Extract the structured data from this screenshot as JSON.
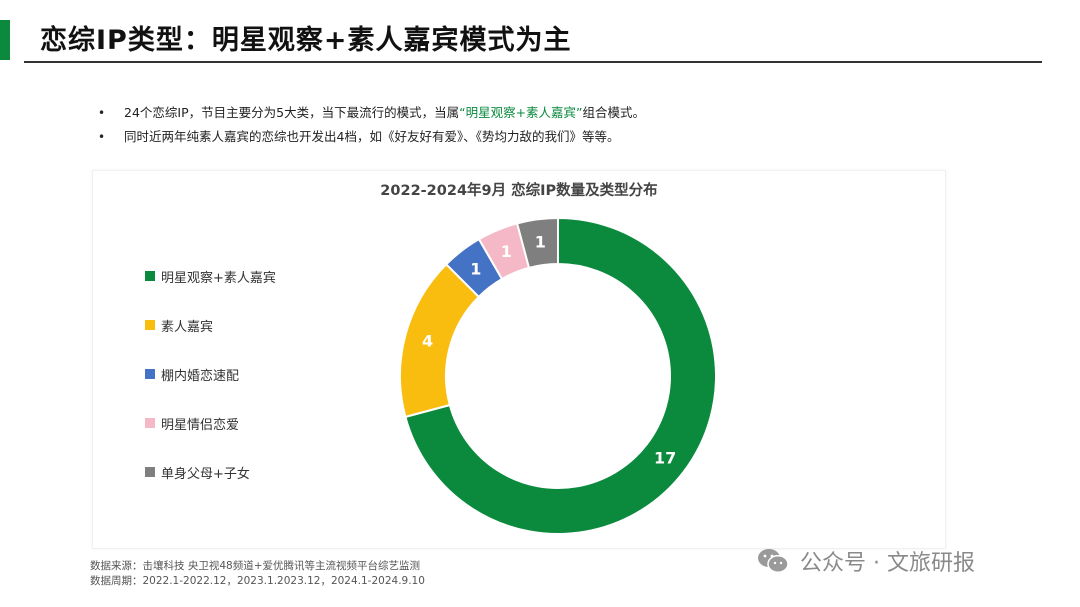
{
  "header": {
    "title": "恋综IP类型：明星观察+素人嘉宾模式为主"
  },
  "bullets": [
    {
      "pre": "24个恋综IP，节目主要分为5大类，当下最流行的模式，当属",
      "highlight": "“明星观察+素人嘉宾”",
      "post": "组合模式。"
    },
    {
      "text": "同时近两年纯素人嘉宾的恋综也开发出4档，如《好友好有爱》、《势均力敌的我们》等等。"
    }
  ],
  "bullet_symbol": "•",
  "chart_data": {
    "type": "donut",
    "title": "2022-2024年9月 恋综IP数量及类型分布",
    "categories": [
      "明星观察+素人嘉宾",
      "素人嘉宾",
      "棚内婚恋速配",
      "明星情侣恋爱",
      "单身父母+子女"
    ],
    "values": [
      17,
      4,
      1,
      1,
      1
    ],
    "labels": [
      "17",
      "4",
      "1",
      "1",
      "1"
    ],
    "colors": [
      "#0b8a3e",
      "#f8bd0f",
      "#4472c4",
      "#f4b8c6",
      "#7f7f7f"
    ],
    "total": 24,
    "start_angle_deg": 0,
    "direction": "clockwise",
    "legend_position": "left"
  },
  "footer": {
    "source_line": "数据来源：击壤科技  央卫视48频道+爱优腾讯等主流视频平台综艺监测",
    "period_line": "数据周期：2022.1-2022.12，2023.1.2023.12，2024.1-2024.9.10"
  },
  "watermark": {
    "text": "公众号 · 文旅研报",
    "icon": "wechat-icon"
  },
  "colors": {
    "accent": "#0b8a3e",
    "title_text": "#111111",
    "highlight_text": "#0b8a3e"
  }
}
